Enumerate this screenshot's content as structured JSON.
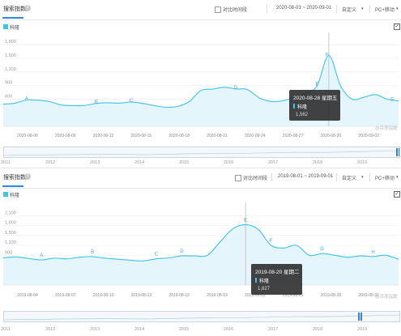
{
  "panel1": {
    "title": "搜索指数",
    "help": "?",
    "compare_label": "对比时间段",
    "date_range": "2020-08-03 ~ 2020-09-01",
    "custom": "自定义",
    "platform": "PC+移动",
    "legend": "科隆",
    "watermark": "@百度指数",
    "tooltip": {
      "date": "2020-08-28 星期五",
      "keyword": "科隆",
      "value": "1,562"
    },
    "x_ticks": [
      "2020-08-06",
      "2020-08-09",
      "2020-08-12",
      "2020-08-15",
      "2020-08-18",
      "2020-08-21",
      "2020-08-24",
      "2020-08-27",
      "2020-08-30",
      "2020-09-02"
    ],
    "nav_years": [
      "2011",
      "2012",
      "2013",
      "2014",
      "2015",
      "2016",
      "2017",
      "2018",
      "2019"
    ]
  },
  "panel2": {
    "title": "搜索指数",
    "help": "?",
    "compare_label": "对比时间段",
    "date_range": "2019-08-01 ~ 2019-09-01",
    "custom": "自定义",
    "platform": "PC+移动",
    "legend": "科隆",
    "watermark": "@百度指数",
    "tooltip": {
      "date": "2019-08-20 星期二",
      "keyword": "科隆",
      "value": "1,827"
    },
    "x_ticks": [
      "2019-08-04",
      "2019-08-07",
      "2019-08-10",
      "2019-08-13",
      "2019-08-16",
      "2019-08-19",
      "2019-08-22",
      "2019-08-25",
      "2019-08-28",
      "2019-08-31"
    ],
    "nav_years": [
      "2011",
      "2012",
      "2013",
      "2014",
      "2015",
      "2016",
      "2017",
      "2018",
      "2019"
    ]
  },
  "chart_data": [
    {
      "type": "area",
      "series": [
        {
          "name": "科隆",
          "values": [
            490,
            510,
            580,
            575,
            545,
            470,
            455,
            460,
            505,
            520,
            510,
            535,
            505,
            455,
            420,
            440,
            545,
            790,
            820,
            860,
            825,
            810,
            630,
            550,
            560,
            640,
            720,
            900,
            1562,
            900,
            600,
            640,
            700,
            600,
            560
          ]
        }
      ],
      "ylim": [
        0,
        2000
      ],
      "y_ticks": [
        300,
        600,
        900,
        1200,
        1500,
        1800
      ],
      "y_tick_labels": [
        "300",
        "600",
        "900",
        "1,200",
        "1,500",
        "1,800"
      ],
      "annotations": [
        "A",
        "B",
        "C",
        "D",
        "E",
        "F",
        "G"
      ],
      "highlight_date": "2020-08-28",
      "highlight_value": 1562,
      "color": "#3bc3e8"
    },
    {
      "type": "area",
      "series": [
        {
          "name": "科隆",
          "values": [
            820,
            850,
            800,
            760,
            810,
            790,
            840,
            860,
            810,
            780,
            750,
            730,
            790,
            820,
            880,
            880,
            900,
            1300,
            1700,
            1827,
            1680,
            1200,
            1120,
            1200,
            900,
            950,
            900,
            840,
            880,
            860,
            900,
            780
          ]
        }
      ],
      "ylim": [
        0,
        2400
      ],
      "y_ticks": [
        300,
        600,
        900,
        1200,
        1500,
        1800,
        2100
      ],
      "y_tick_labels": [
        "300",
        "600",
        "900",
        "1,200",
        "1,500",
        "1,800",
        "2,100"
      ],
      "annotations": [
        "A",
        "B",
        "C",
        "D",
        "E",
        "F",
        "G",
        "H"
      ],
      "highlight_date": "2019-08-20",
      "highlight_value": 1827,
      "color": "#3bc3e8"
    }
  ]
}
